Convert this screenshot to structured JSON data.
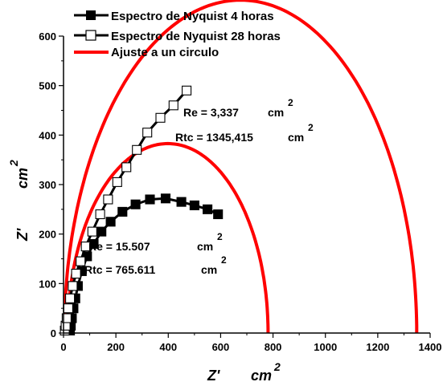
{
  "chart_data": {
    "type": "scatter",
    "title": "",
    "xlabel": "Z'",
    "xlabel_unit": "cm",
    "ylabel": "Z'",
    "ylabel_unit": "cm",
    "unit_superscript": "2",
    "xlim": [
      0,
      1400
    ],
    "ylim": [
      0,
      600
    ],
    "x_ticks": [
      0,
      200,
      400,
      600,
      800,
      1000,
      1200,
      1400
    ],
    "y_ticks": [
      0,
      100,
      200,
      300,
      400,
      500,
      600
    ],
    "legend_position": "top-left",
    "series": [
      {
        "name": "Espectro de Nyquist 4 horas",
        "marker": "filled-square",
        "color": "#000000",
        "x": [
          25,
          28,
          32,
          38,
          45,
          55,
          70,
          90,
          115,
          145,
          180,
          225,
          275,
          330,
          390,
          450,
          500,
          550,
          590
        ],
        "y": [
          5,
          15,
          30,
          50,
          70,
          95,
          125,
          155,
          180,
          205,
          225,
          245,
          260,
          270,
          272,
          265,
          258,
          250,
          240
        ]
      },
      {
        "name": "Espectro de Nyquist 28 horas",
        "marker": "open-square",
        "color": "#000000",
        "x": [
          5,
          8,
          12,
          18,
          25,
          35,
          48,
          65,
          85,
          110,
          140,
          170,
          205,
          240,
          280,
          320,
          370,
          420,
          470
        ],
        "y": [
          5,
          15,
          30,
          50,
          70,
          95,
          120,
          145,
          175,
          205,
          240,
          270,
          305,
          335,
          370,
          405,
          435,
          460,
          490
        ]
      },
      {
        "name": "Ajuste a un circulo",
        "style": "line",
        "color": "#ff0000",
        "circles": [
          {
            "re": 3.337,
            "rtc": 1345.415
          },
          {
            "re": 15.507,
            "rtc": 765.611
          }
        ]
      }
    ],
    "annotations": [
      {
        "re_label": "Re  = 3,337",
        "rtc_label": "Rtc = 1345,415",
        "unit": "cm",
        "sup": "2"
      },
      {
        "re_label": "Re  = 15.507",
        "rtc_label": "Rtc = 765.611",
        "unit": "cm",
        "sup": "2"
      }
    ]
  }
}
